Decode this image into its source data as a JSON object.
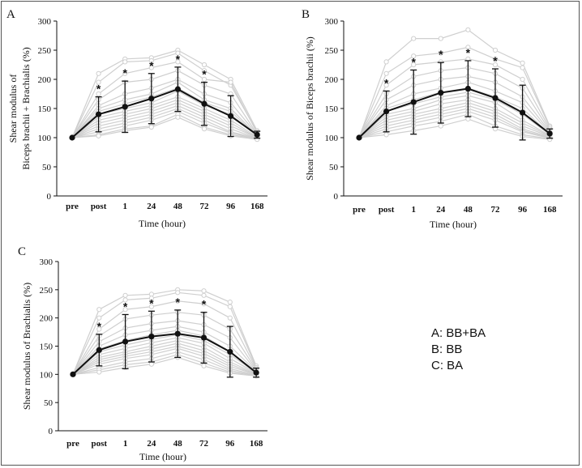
{
  "legend": [
    "A: BB+BA",
    "B: BB",
    "C: BA"
  ],
  "chart_data": [
    {
      "type": "line",
      "panel": "A",
      "ylabel_lines": [
        "Shear modulus of",
        "Biceps brachii + Brachialis (%)"
      ],
      "xlabel": "Time (hour)",
      "categories": [
        "pre",
        "post",
        "1",
        "24",
        "48",
        "72",
        "96",
        "168"
      ],
      "ylim": [
        0,
        300
      ],
      "yticks": [
        0,
        50,
        100,
        150,
        200,
        250,
        300
      ],
      "series": [
        {
          "values": [
            100,
            140,
            153,
            167,
            183,
            158,
            137,
            105
          ],
          "error": [
            0,
            30,
            44,
            43,
            38,
            37,
            35,
            6
          ]
        }
      ],
      "individual": [
        [
          100,
          210,
          235,
          237,
          250,
          225,
          200,
          112
        ],
        [
          100,
          195,
          230,
          232,
          245,
          215,
          190,
          110
        ],
        [
          100,
          175,
          210,
          220,
          230,
          200,
          195,
          108
        ],
        [
          100,
          165,
          195,
          200,
          215,
          190,
          175,
          106
        ],
        [
          100,
          155,
          175,
          185,
          200,
          175,
          160,
          105
        ],
        [
          100,
          150,
          165,
          175,
          195,
          165,
          150,
          104
        ],
        [
          100,
          145,
          158,
          170,
          185,
          160,
          145,
          103
        ],
        [
          100,
          140,
          150,
          160,
          180,
          155,
          140,
          102
        ],
        [
          100,
          135,
          145,
          155,
          170,
          150,
          130,
          101
        ],
        [
          100,
          130,
          140,
          150,
          165,
          145,
          125,
          100
        ],
        [
          100,
          125,
          135,
          145,
          160,
          140,
          120,
          100
        ],
        [
          100,
          120,
          130,
          140,
          155,
          135,
          115,
          99
        ],
        [
          100,
          115,
          125,
          135,
          150,
          130,
          110,
          99
        ],
        [
          100,
          110,
          120,
          130,
          145,
          125,
          108,
          98
        ],
        [
          100,
          105,
          115,
          120,
          140,
          118,
          105,
          98
        ],
        [
          100,
          103,
          112,
          118,
          135,
          115,
          103,
          97
        ]
      ],
      "significant": [
        "post",
        "1",
        "24",
        "48",
        "72"
      ]
    },
    {
      "type": "line",
      "panel": "B",
      "ylabel_lines": [
        "Shear modulus of Biceps brachii (%)"
      ],
      "xlabel": "Time (hour)",
      "categories": [
        "pre",
        "post",
        "1",
        "24",
        "48",
        "72",
        "96",
        "168"
      ],
      "ylim": [
        0,
        300
      ],
      "yticks": [
        0,
        50,
        100,
        150,
        200,
        250,
        300
      ],
      "series": [
        {
          "values": [
            100,
            145,
            161,
            177,
            184,
            168,
            143,
            107
          ],
          "error": [
            0,
            35,
            55,
            52,
            48,
            50,
            47,
            8
          ]
        }
      ],
      "individual": [
        [
          100,
          230,
          270,
          270,
          285,
          250,
          228,
          120
        ],
        [
          100,
          210,
          240,
          245,
          255,
          235,
          220,
          118
        ],
        [
          100,
          190,
          225,
          230,
          235,
          225,
          200,
          115
        ],
        [
          100,
          175,
          205,
          215,
          220,
          210,
          185,
          112
        ],
        [
          100,
          165,
          190,
          200,
          205,
          195,
          170,
          110
        ],
        [
          100,
          155,
          175,
          185,
          195,
          180,
          160,
          108
        ],
        [
          100,
          150,
          165,
          178,
          185,
          170,
          150,
          106
        ],
        [
          100,
          145,
          158,
          170,
          178,
          165,
          140,
          105
        ],
        [
          100,
          140,
          150,
          165,
          172,
          160,
          130,
          104
        ],
        [
          100,
          135,
          145,
          158,
          165,
          150,
          125,
          103
        ],
        [
          100,
          130,
          140,
          150,
          160,
          145,
          120,
          102
        ],
        [
          100,
          125,
          135,
          145,
          155,
          140,
          115,
          101
        ],
        [
          100,
          120,
          130,
          140,
          150,
          135,
          112,
          100
        ],
        [
          100,
          115,
          125,
          135,
          145,
          130,
          110,
          99
        ],
        [
          100,
          110,
          120,
          128,
          140,
          120,
          105,
          98
        ],
        [
          100,
          105,
          112,
          120,
          132,
          115,
          102,
          97
        ]
      ],
      "significant": [
        "post",
        "1",
        "24",
        "48",
        "72"
      ]
    },
    {
      "type": "line",
      "panel": "C",
      "ylabel_lines": [
        "Shear modulus of Brachialis (%)"
      ],
      "xlabel": "Time (hour)",
      "categories": [
        "pre",
        "post",
        "1",
        "24",
        "48",
        "72",
        "96",
        "168"
      ],
      "ylim": [
        0,
        300
      ],
      "yticks": [
        0,
        50,
        100,
        150,
        200,
        250,
        300
      ],
      "series": [
        {
          "values": [
            100,
            143,
            158,
            167,
            172,
            165,
            140,
            103
          ],
          "error": [
            0,
            28,
            48,
            45,
            42,
            45,
            45,
            8
          ]
        }
      ],
      "individual": [
        [
          100,
          215,
          240,
          242,
          250,
          248,
          228,
          115
        ],
        [
          100,
          200,
          232,
          235,
          245,
          240,
          220,
          112
        ],
        [
          100,
          180,
          215,
          220,
          230,
          225,
          200,
          110
        ],
        [
          100,
          168,
          198,
          205,
          210,
          205,
          180,
          108
        ],
        [
          100,
          158,
          182,
          190,
          195,
          188,
          165,
          106
        ],
        [
          100,
          150,
          170,
          178,
          185,
          175,
          150,
          105
        ],
        [
          100,
          145,
          160,
          170,
          178,
          168,
          140,
          104
        ],
        [
          100,
          140,
          152,
          162,
          170,
          160,
          135,
          103
        ],
        [
          100,
          135,
          146,
          156,
          165,
          155,
          128,
          102
        ],
        [
          100,
          130,
          140,
          150,
          160,
          148,
          122,
          101
        ],
        [
          100,
          126,
          136,
          145,
          155,
          142,
          118,
          100
        ],
        [
          100,
          122,
          132,
          140,
          150,
          137,
          114,
          100
        ],
        [
          100,
          118,
          128,
          135,
          146,
          132,
          110,
          99
        ],
        [
          100,
          112,
          122,
          128,
          140,
          126,
          107,
          98
        ],
        [
          100,
          108,
          117,
          122,
          135,
          120,
          104,
          98
        ],
        [
          100,
          104,
          112,
          118,
          130,
          115,
          102,
          97
        ]
      ],
      "significant": [
        "post",
        "1",
        "24",
        "48",
        "72"
      ]
    }
  ]
}
